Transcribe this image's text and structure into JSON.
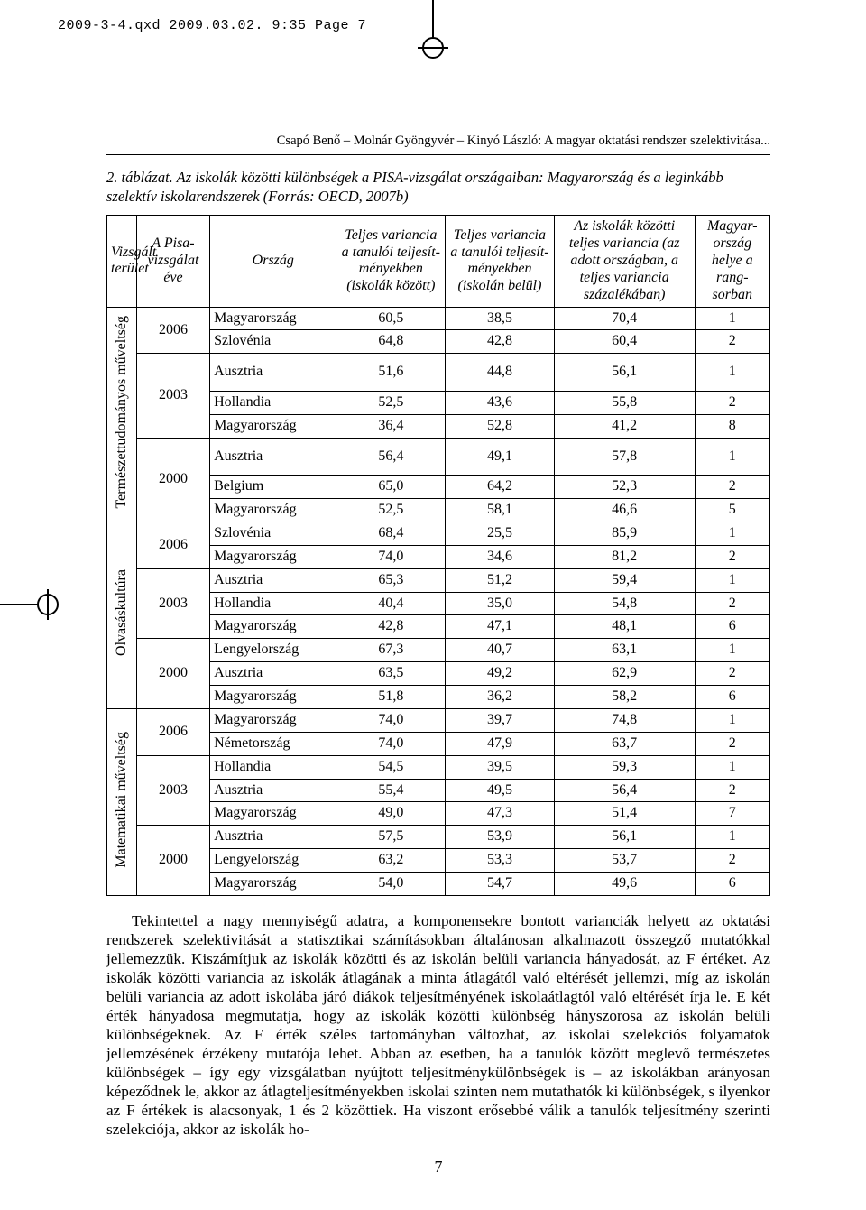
{
  "slug": "2009-3-4.qxd  2009.03.02.  9:35  Page 7",
  "running_header": "Csapó Benő – Molnár Gyöngyvér – Kinyó László: A magyar oktatási rendszer szelektivitása...",
  "caption": "2. táblázat. Az iskolák közötti különbségek a PISA-vizsgálat országaiban: Magyarország és a leginkább szelektív iskolarendszerek (Forrás: OECD, 2007b)",
  "page_number": "7",
  "headers": {
    "domain": "Vizsgált terület",
    "year": "A Pisa-vizsgálat éve",
    "country": "Ország",
    "var_between": "Teljes variancia a tanulói teljesít-ményekben (iskolák között)",
    "var_within": "Teljes variancia a tanulói teljesít-ményekben (iskolán belül)",
    "pct": "Az iskolák közötti teljes variancia (az adott országban, a teljes variancia százalékában)",
    "rank": "Magyar-ország helye a rang-sorban"
  },
  "domains": [
    {
      "label": "Természettudományos műveltség"
    },
    {
      "label": "Olvasáskultúra"
    },
    {
      "label": "Matematikai műveltség"
    }
  ],
  "years": [
    "2006",
    "2003",
    "2000",
    "2006",
    "2003",
    "2000",
    "2006",
    "2003",
    "2000"
  ],
  "rows": [
    {
      "country": "Magyarország",
      "v1": "60,5",
      "v2": "38,5",
      "pct": "70,4",
      "rank": "1"
    },
    {
      "country": "Szlovénia",
      "v1": "64,8",
      "v2": "42,8",
      "pct": "60,4",
      "rank": "2"
    },
    {
      "country": "Ausztria",
      "v1": "51,6",
      "v2": "44,8",
      "pct": "56,1",
      "rank": "1"
    },
    {
      "country": "Hollandia",
      "v1": "52,5",
      "v2": "43,6",
      "pct": "55,8",
      "rank": "2"
    },
    {
      "country": "Magyarország",
      "v1": "36,4",
      "v2": "52,8",
      "pct": "41,2",
      "rank": "8"
    },
    {
      "country": "Ausztria",
      "v1": "56,4",
      "v2": "49,1",
      "pct": "57,8",
      "rank": "1"
    },
    {
      "country": "Belgium",
      "v1": "65,0",
      "v2": "64,2",
      "pct": "52,3",
      "rank": "2"
    },
    {
      "country": "Magyarország",
      "v1": "52,5",
      "v2": "58,1",
      "pct": "46,6",
      "rank": "5"
    },
    {
      "country": "Szlovénia",
      "v1": "68,4",
      "v2": "25,5",
      "pct": "85,9",
      "rank": "1"
    },
    {
      "country": "Magyarország",
      "v1": "74,0",
      "v2": "34,6",
      "pct": "81,2",
      "rank": "2"
    },
    {
      "country": "Ausztria",
      "v1": "65,3",
      "v2": "51,2",
      "pct": "59,4",
      "rank": "1"
    },
    {
      "country": "Hollandia",
      "v1": "40,4",
      "v2": "35,0",
      "pct": "54,8",
      "rank": "2"
    },
    {
      "country": "Magyarország",
      "v1": "42,8",
      "v2": "47,1",
      "pct": "48,1",
      "rank": "6"
    },
    {
      "country": "Lengyelország",
      "v1": "67,3",
      "v2": "40,7",
      "pct": "63,1",
      "rank": "1"
    },
    {
      "country": "Ausztria",
      "v1": "63,5",
      "v2": "49,2",
      "pct": "62,9",
      "rank": "2"
    },
    {
      "country": "Magyarország",
      "v1": "51,8",
      "v2": "36,2",
      "pct": "58,2",
      "rank": "6"
    },
    {
      "country": "Magyarország",
      "v1": "74,0",
      "v2": "39,7",
      "pct": "74,8",
      "rank": "1"
    },
    {
      "country": "Németország",
      "v1": "74,0",
      "v2": "47,9",
      "pct": "63,7",
      "rank": "2"
    },
    {
      "country": "Hollandia",
      "v1": "54,5",
      "v2": "39,5",
      "pct": "59,3",
      "rank": "1"
    },
    {
      "country": "Ausztria",
      "v1": "55,4",
      "v2": "49,5",
      "pct": "56,4",
      "rank": "2"
    },
    {
      "country": "Magyarország",
      "v1": "49,0",
      "v2": "47,3",
      "pct": "51,4",
      "rank": "7"
    },
    {
      "country": "Ausztria",
      "v1": "57,5",
      "v2": "53,9",
      "pct": "56,1",
      "rank": "1"
    },
    {
      "country": "Lengyelország",
      "v1": "63,2",
      "v2": "53,3",
      "pct": "53,7",
      "rank": "2"
    },
    {
      "country": "Magyarország",
      "v1": "54,0",
      "v2": "54,7",
      "pct": "49,6",
      "rank": "6"
    }
  ],
  "body_text": "Tekintettel a nagy mennyiségű adatra, a komponensekre bontott varianciák helyett az oktatási rendszerek szelektivitását a statisztikai számításokban általánosan alkalmazott összegző mutatókkal jellemezzük. Kiszámítjuk az iskolák közötti és az iskolán belüli variancia hányadosát, az F értéket. Az iskolák közötti variancia az iskolák átlagának a minta átlagától való eltérését jellemzi, míg az iskolán belüli variancia az adott iskolába járó diákok teljesítményének iskolaátlagtól való eltérését írja le. E két érték hányadosa megmutatja, hogy az iskolák közötti különbség hányszorosa az iskolán belüli különbségeknek. Az F érték széles tartományban változhat, az iskolai szelekciós folyamatok jellemzésének érzékeny mutatója lehet. Abban az esetben, ha a tanulók között meglevő természetes különbségek – így egy vizsgálatban nyújtott teljesítménykülönbségek is – az iskolákban arányosan képeződnek le, akkor az átlagteljesítményekben iskolai szinten nem mutathatók ki különbségek, s ilyenkor az F értékek is alacsonyak, 1 és 2 közöttiek. Ha viszont erősebbé válik a tanulók teljesítmény szerinti szelekciója, akkor az iskolák ho-"
}
